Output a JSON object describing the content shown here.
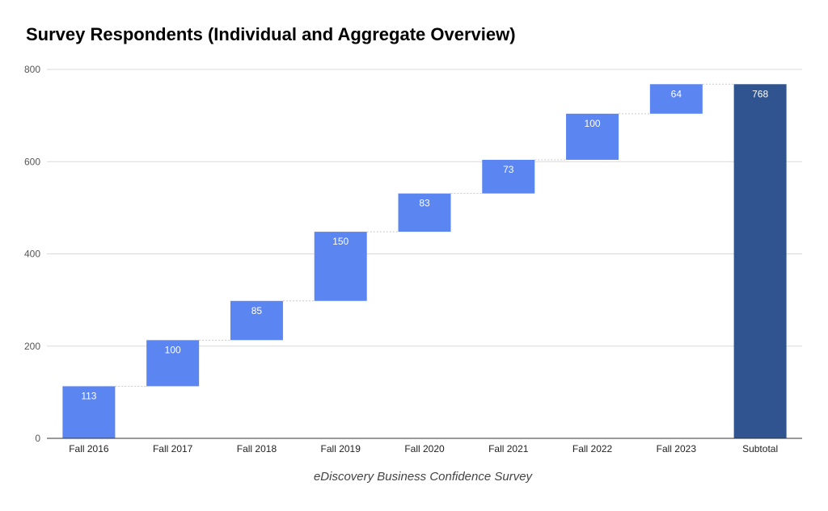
{
  "chart_data": {
    "type": "waterfall",
    "title": "Survey Respondents (Individual and Aggregate Overview)",
    "xlabel": "eDiscovery Business Confidence Survey",
    "ylabel": "",
    "categories": [
      "Fall 2016",
      "Fall 2017",
      "Fall 2018",
      "Fall 2019",
      "Fall 2020",
      "Fall 2021",
      "Fall 2022",
      "Fall 2023",
      "Subtotal"
    ],
    "values": [
      113,
      100,
      85,
      150,
      83,
      73,
      100,
      64,
      768
    ],
    "subtotal_label": "Subtotal",
    "ylim": [
      0,
      800
    ],
    "yticks": [
      0,
      200,
      400,
      600,
      800
    ],
    "grid": true,
    "colors": {
      "increase": "#5b86f2",
      "subtotal": "#2f5490",
      "grid": "#d9d9d9",
      "axis": "#333333"
    }
  }
}
